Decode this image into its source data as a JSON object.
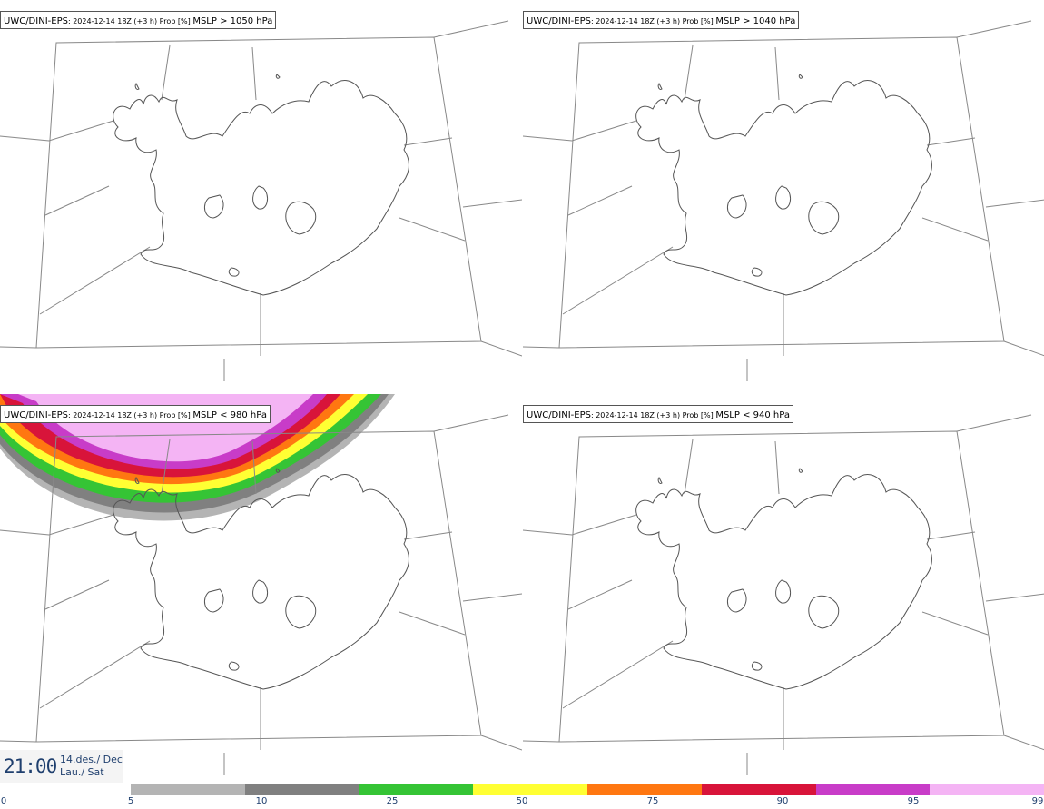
{
  "panels": [
    {
      "model": "UWC/DINI-EPS",
      "meta": ": 2024-12-14 18Z (+3 h) Prob [%] ",
      "variable": "MSLP > 1050 hPa"
    },
    {
      "model": "UWC/DINI-EPS",
      "meta": ": 2024-12-14 18Z (+3 h) Prob [%] ",
      "variable": "MSLP > 1040 hPa"
    },
    {
      "model": "UWC/DINI-EPS",
      "meta": ": 2024-12-14 18Z (+3 h) Prob [%] ",
      "variable": "MSLP < 980 hPa"
    },
    {
      "model": "UWC/DINI-EPS",
      "meta": ": 2024-12-14 18Z (+3 h) Prob [%] ",
      "variable": "MSLP < 940 hPa"
    }
  ],
  "time": {
    "clock": "21:00",
    "date_line1": "14.des./ Dec",
    "date_line2": "Lau./ Sat"
  },
  "scale": {
    "colors": [
      "#b4b4b4",
      "#808080",
      "#35c435",
      "#ffff33",
      "#ff7711",
      "#d8143a",
      "#c83cc8",
      "#f4b4f4"
    ],
    "labels": [
      "0",
      "5",
      "10",
      "25",
      "50",
      "75",
      "90",
      "95",
      "99"
    ]
  }
}
